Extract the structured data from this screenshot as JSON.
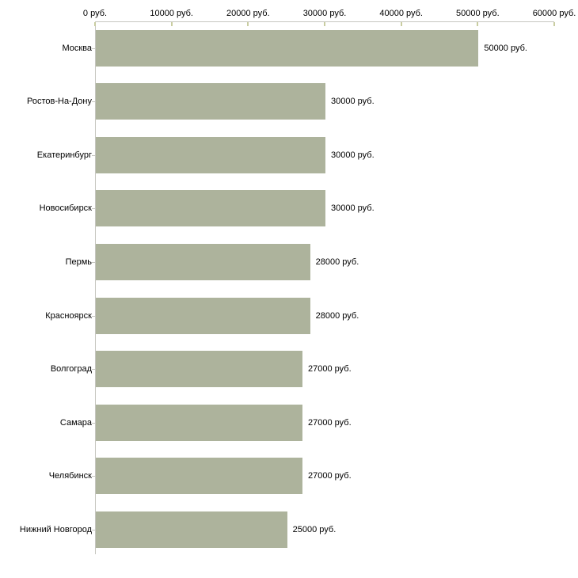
{
  "chart_data": {
    "type": "bar",
    "orientation": "horizontal",
    "title": "",
    "xlabel": "",
    "ylabel": "",
    "unit": "руб.",
    "categories": [
      "Москва",
      "Ростов-На-Дону",
      "Екатеринбург",
      "Новосибирск",
      "Пермь",
      "Красноярск",
      "Волгоград",
      "Самара",
      "Челябинск",
      "Нижний Новгород"
    ],
    "values": [
      50000,
      30000,
      30000,
      30000,
      28000,
      28000,
      27000,
      27000,
      27000,
      25000
    ],
    "value_labels": [
      "50000 руб.",
      "30000 руб.",
      "30000 руб.",
      "30000 руб.",
      "28000 руб.",
      "28000 руб.",
      "27000 руб.",
      "27000 руб.",
      "27000 руб.",
      "25000 руб."
    ],
    "x_axis": {
      "position": "top",
      "min": 0,
      "max": 60000,
      "ticks": [
        0,
        10000,
        20000,
        30000,
        40000,
        50000,
        60000
      ],
      "tick_labels": [
        "0 руб.",
        "10000 руб.",
        "20000 руб.",
        "30000 руб.",
        "40000 руб.",
        "50000 руб.",
        "60000 руб."
      ]
    },
    "grid": false,
    "legend": false,
    "colors": {
      "bar": "#adb39c",
      "axis_line": "#c6c6c0",
      "tick_mark": "#c9cda1",
      "text": "#000000",
      "background": "#ffffff"
    }
  }
}
